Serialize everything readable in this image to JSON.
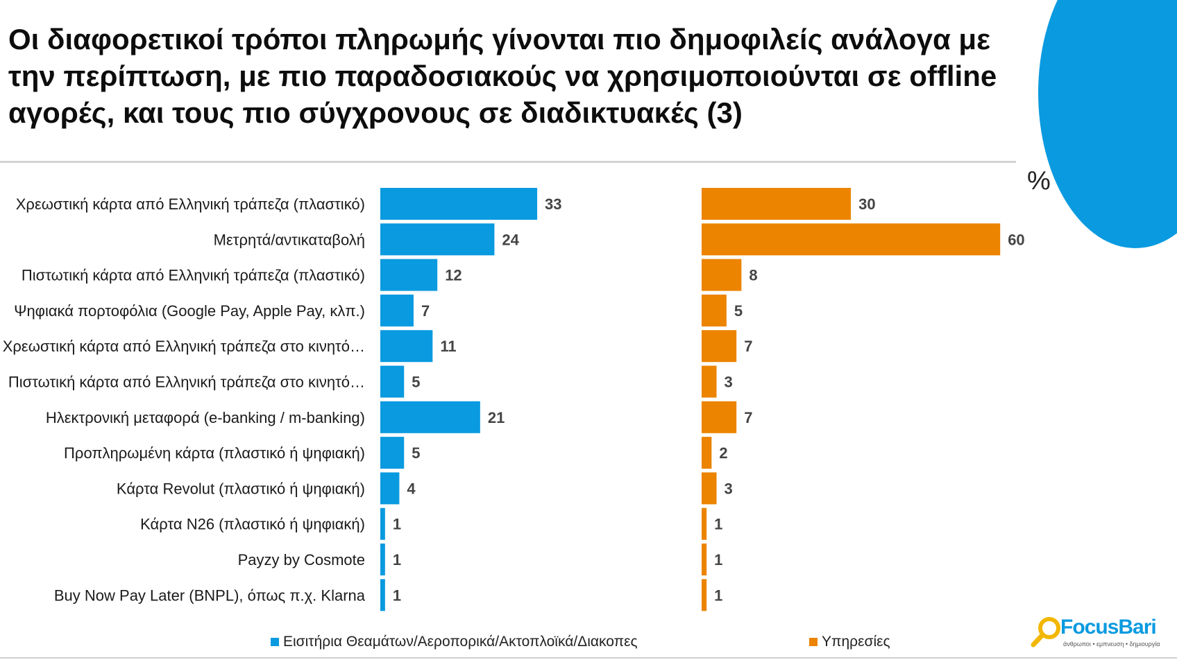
{
  "title": "Οι διαφορετικοί τρόποι πληρωμής γίνονται πιο δημοφιλείς ανάλογα με την περίπτωση, με πιο παραδοσιακούς να χρησιμοποιούνται σε offline αγορές, και τους πιο σύγχρονους σε διαδικτυακές (3)",
  "unit_label": "%",
  "logo": {
    "text": "FocusBari",
    "tagline": "άνθρωποι • εμπνευση • δημιουργία"
  },
  "colors": {
    "blue": "#0a9ae0",
    "orange": "#ec8400"
  },
  "chart_data": {
    "type": "bar",
    "orientation": "horizontal",
    "categories": [
      "Χρεωστική κάρτα από Ελληνική τράπεζα (πλαστικό)",
      "Μετρητά/αντικαταβολή",
      "Πιστωτική κάρτα από Ελληνική τράπεζα (πλαστικό)",
      "Ψηφιακά πορτοφόλια (Google Pay, Apple Pay, κλπ.)",
      "Χρεωστική κάρτα από Ελληνική τράπεζα στο κινητό…",
      "Πιστωτική κάρτα από Ελληνική τράπεζα στο κινητό…",
      "Ηλεκτρονική μεταφορά (e-banking / m-banking)",
      "Προπληρωμένη κάρτα (πλαστικό ή ψηφιακή)",
      "Κάρτα Revolut (πλαστικό ή ψηφιακή)",
      "Κάρτα N26 (πλαστικό ή ψηφιακή)",
      "Payzy by Cosmote",
      "Buy Now Pay Later (BNPL), όπως π.χ. Klarna"
    ],
    "series": [
      {
        "name": "Εισιτήρια Θεαμάτων/Αεροπορικά/Ακτοπλοϊκά/Διακοπες",
        "color": "#0a9ae0",
        "values": [
          33,
          24,
          12,
          7,
          11,
          5,
          21,
          5,
          4,
          1,
          1,
          1
        ]
      },
      {
        "name": "Υπηρεσίες",
        "color": "#ec8400",
        "values": [
          30,
          60,
          8,
          5,
          7,
          3,
          7,
          2,
          3,
          1,
          1,
          1
        ]
      }
    ],
    "legend_position": "bottom",
    "grid": false
  }
}
